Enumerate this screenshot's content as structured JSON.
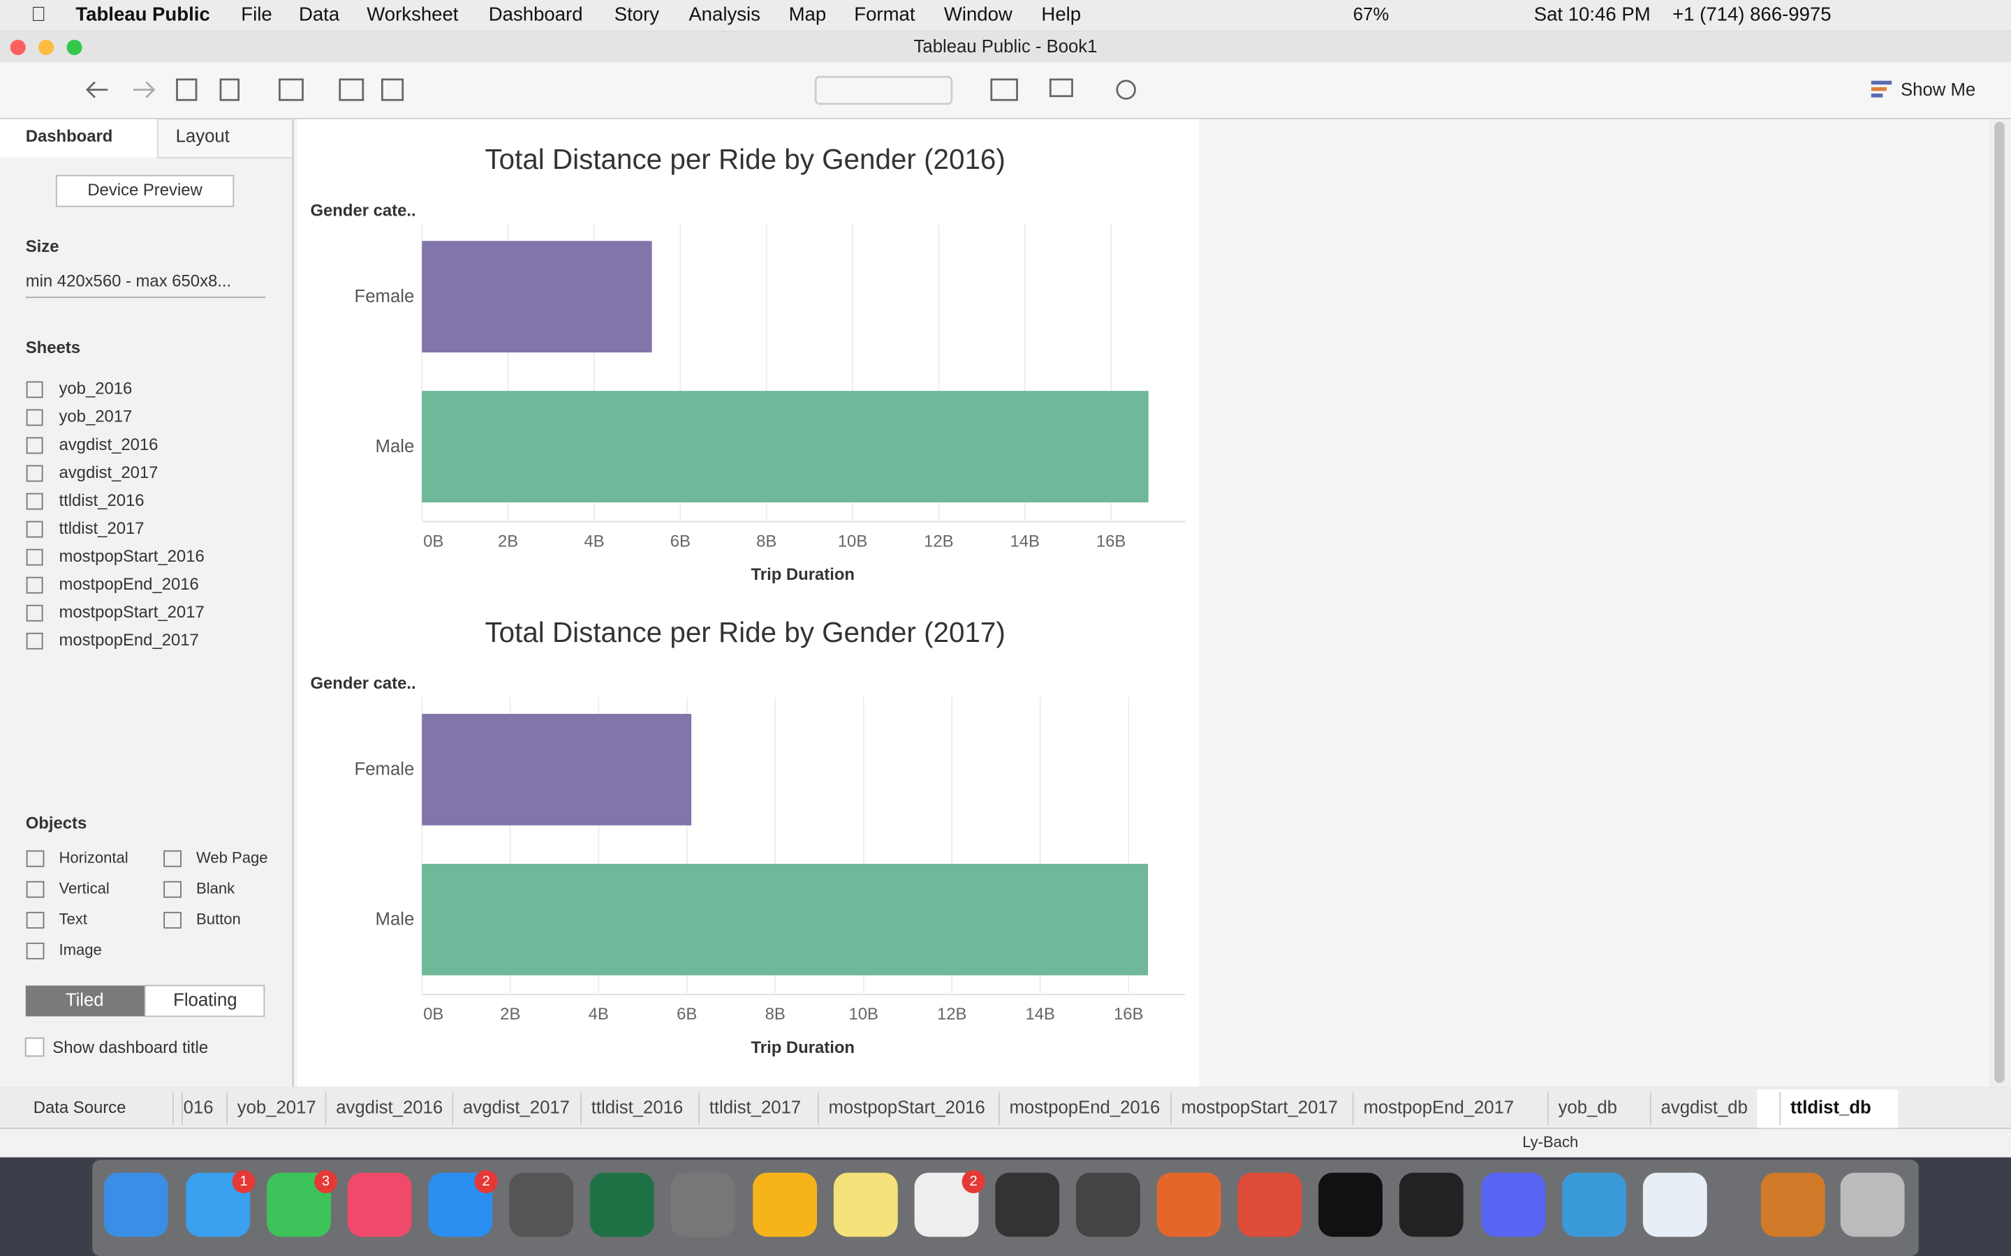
{
  "menubar": {
    "app": "Tableau Public",
    "menus": [
      "File",
      "Data",
      "Worksheet",
      "Dashboard",
      "Story",
      "Analysis",
      "Map",
      "Format",
      "Window",
      "Help"
    ],
    "battery": "67%",
    "clock": "Sat 10:46 PM",
    "phone": "+1 (714) 866-9975"
  },
  "window_title": "Tableau Public - Book1",
  "toolbar": {
    "show_me": "Show Me"
  },
  "sidebar": {
    "tabs": [
      "Dashboard",
      "Layout"
    ],
    "device_preview": "Device Preview",
    "size_heading": "Size",
    "size_value": "min 420x560 - max 650x8...",
    "sheets_heading": "Sheets",
    "sheets": [
      "yob_2016",
      "yob_2017",
      "avgdist_2016",
      "avgdist_2017",
      "ttldist_2016",
      "ttldist_2017",
      "mostpopStart_2016",
      "mostpopEnd_2016",
      "mostpopStart_2017",
      "mostpopEnd_2017"
    ],
    "objects_heading": "Objects",
    "objects": [
      "Horizontal",
      "Web Page",
      "Vertical",
      "Blank",
      "Text",
      "Button",
      "Image"
    ],
    "tiled": "Tiled",
    "floating": "Floating",
    "show_title": "Show dashboard title"
  },
  "chart_data": [
    {
      "type": "bar",
      "orientation": "horizontal",
      "title": "Total Distance per Ride by Gender (2016)",
      "y_label": "Gender cate..",
      "x_label": "Trip Duration",
      "categories": [
        "Female",
        "Male"
      ],
      "values": [
        5340000000,
        16870000000
      ],
      "colors": [
        "#8275aa",
        "#6fb899"
      ],
      "xlim": [
        0,
        17720000000
      ],
      "grid": true,
      "xticks": [
        {
          "value": 0,
          "label": "0B"
        },
        {
          "value": 2000000000,
          "label": "2B"
        },
        {
          "value": 4000000000,
          "label": "4B"
        },
        {
          "value": 6000000000,
          "label": "6B"
        },
        {
          "value": 8000000000,
          "label": "8B"
        },
        {
          "value": 10000000000,
          "label": "10B"
        },
        {
          "value": 12000000000,
          "label": "12B"
        },
        {
          "value": 14000000000,
          "label": "14B"
        },
        {
          "value": 16000000000,
          "label": "16B"
        }
      ]
    },
    {
      "type": "bar",
      "orientation": "horizontal",
      "title": "Total Distance per Ride by Gender (2017)",
      "y_label": "Gender cate..",
      "x_label": "Trip Duration",
      "categories": [
        "Female",
        "Male"
      ],
      "values": [
        6100000000,
        16440000000
      ],
      "colors": [
        "#8275aa",
        "#6fb899"
      ],
      "xlim": [
        0,
        17280000000
      ],
      "grid": true,
      "xticks": [
        {
          "value": 0,
          "label": "0B"
        },
        {
          "value": 2000000000,
          "label": "2B"
        },
        {
          "value": 4000000000,
          "label": "4B"
        },
        {
          "value": 6000000000,
          "label": "6B"
        },
        {
          "value": 8000000000,
          "label": "8B"
        },
        {
          "value": 10000000000,
          "label": "10B"
        },
        {
          "value": 12000000000,
          "label": "12B"
        },
        {
          "value": 14000000000,
          "label": "14B"
        },
        {
          "value": 16000000000,
          "label": "16B"
        }
      ]
    }
  ],
  "bottom_tabs": {
    "data_source": "Data Source",
    "sheets": [
      "016",
      "yob_2017",
      "avgdist_2016",
      "avgdist_2017",
      "ttldist_2016",
      "ttldist_2017",
      "mostpopStart_2016",
      "mostpopEnd_2016",
      "mostpopStart_2017",
      "mostpopEnd_2017",
      "yob_db",
      "avgdist_db",
      "ttldist_db"
    ]
  },
  "status": {
    "user": "Ly-Bach"
  },
  "dock": {
    "badges": [
      "1",
      "3",
      "2",
      "2"
    ]
  }
}
